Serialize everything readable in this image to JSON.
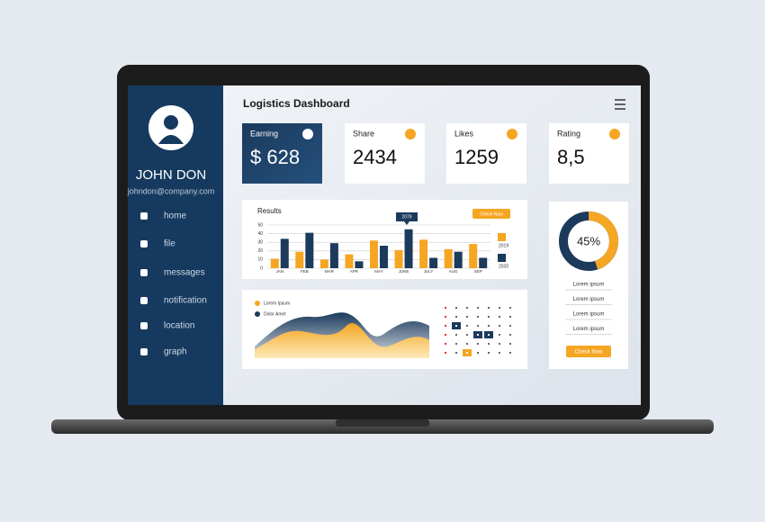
{
  "sidebar": {
    "name": "JOHN DON",
    "email": "johndon@company.com",
    "menu": [
      "home",
      "file",
      "messages",
      "notification",
      "location",
      "graph"
    ]
  },
  "header": {
    "title": "Logistics Dashboard"
  },
  "cards": [
    {
      "label": "Earning",
      "value": "$ 628"
    },
    {
      "label": "Share",
      "value": "2434"
    },
    {
      "label": "Likes",
      "value": "1259"
    },
    {
      "label": "Rating",
      "value": "8,5"
    }
  ],
  "chart_data": [
    {
      "type": "bar",
      "title": "Results",
      "button": "Check Now",
      "annotation": "2079",
      "categories": [
        "JAN",
        "FEB",
        "MAR",
        "APR",
        "MAY",
        "JUNE",
        "JULY",
        "AUG",
        "SEP"
      ],
      "series": [
        {
          "name": "2019",
          "color": "#f5a623",
          "values": [
            11,
            19,
            10,
            16,
            32,
            21,
            33,
            22,
            28
          ]
        },
        {
          "name": "2020",
          "color": "#1b3a5c",
          "values": [
            34,
            41,
            29,
            8,
            26,
            45,
            12,
            19,
            12
          ]
        }
      ],
      "ylim": [
        0,
        50
      ],
      "yticks": [
        0,
        10,
        20,
        30,
        40,
        50
      ],
      "grid": true
    },
    {
      "type": "area",
      "series": [
        {
          "name": "Lorem Ipsum",
          "color": "#f5a623"
        },
        {
          "name": "Dolor Amet",
          "color": "#1b3a5c"
        }
      ]
    },
    {
      "type": "donut",
      "values": [
        45
      ],
      "value_labels": [
        "45%"
      ],
      "color": "#f5a623",
      "track_color": "#1b3a5c"
    }
  ],
  "side_panel": {
    "items": [
      "Lorem ipsum",
      "Lorem ipsum",
      "Lorem ipsum",
      "Lorem ipsum"
    ],
    "button": "Check Now"
  }
}
